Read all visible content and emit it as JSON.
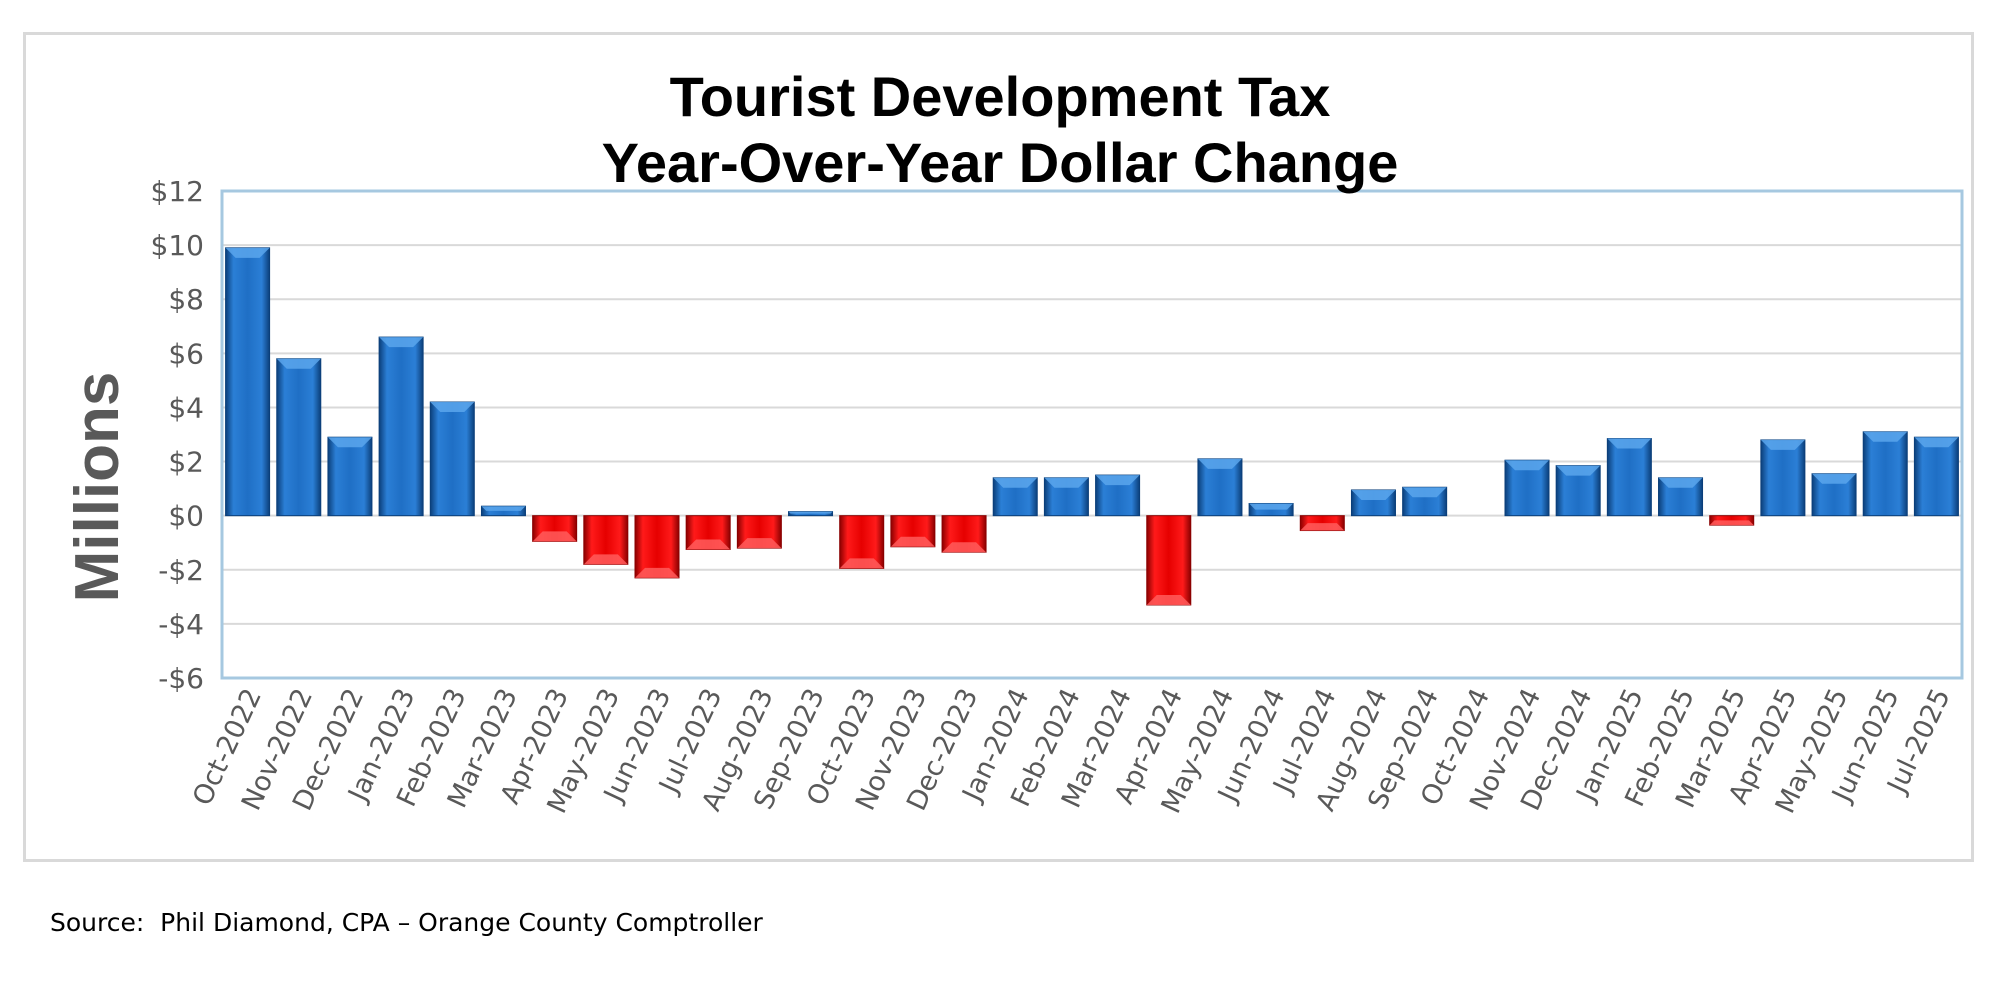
{
  "chart_data": {
    "type": "bar",
    "title": [
      "Tourist Development Tax",
      "Year-Over-Year Dollar Change"
    ],
    "ylabel": "Millions",
    "xlabel": "",
    "ylim": [
      -6,
      12
    ],
    "yticks": [
      -6,
      -4,
      -2,
      0,
      2,
      4,
      6,
      8,
      10,
      12
    ],
    "ytick_labels": [
      "-$6",
      "-$4",
      "-$2",
      "$0",
      "$2",
      "$4",
      "$6",
      "$8",
      "$10",
      "$12"
    ],
    "grid": true,
    "categories": [
      "Oct-2022",
      "Nov-2022",
      "Dec-2022",
      "Jan-2023",
      "Feb-2023",
      "Mar-2023",
      "Apr-2023",
      "May-2023",
      "Jun-2023",
      "Jul-2023",
      "Aug-2023",
      "Sep-2023",
      "Oct-2023",
      "Nov-2023",
      "Dec-2023",
      "Jan-2024",
      "Feb-2024",
      "Mar-2024",
      "Apr-2024",
      "May-2024",
      "Jun-2024",
      "Jul-2024",
      "Aug-2024",
      "Sep-2024",
      "Oct-2024",
      "Nov-2024",
      "Dec-2024",
      "Jan-2025",
      "Feb-2025",
      "Mar-2025",
      "Apr-2025",
      "May-2025",
      "Jun-2025",
      "Jul-2025"
    ],
    "values": [
      9.9,
      5.8,
      2.9,
      6.6,
      4.2,
      0.35,
      -0.95,
      -1.8,
      -2.3,
      -1.25,
      -1.2,
      0.15,
      -1.95,
      -1.15,
      -1.35,
      1.4,
      1.4,
      1.5,
      -3.3,
      2.1,
      0.45,
      -0.55,
      0.95,
      1.05,
      0.0,
      2.05,
      1.85,
      2.85,
      1.4,
      -0.35,
      2.8,
      1.55,
      3.1,
      2.9
    ],
    "colors": {
      "positive": "#1f6fc5",
      "negative": "#e60000",
      "grid": "#d9d9d9",
      "axis": "#a6c8e0"
    }
  },
  "source": "Source:  Phil Diamond, CPA – Orange County Comptroller"
}
